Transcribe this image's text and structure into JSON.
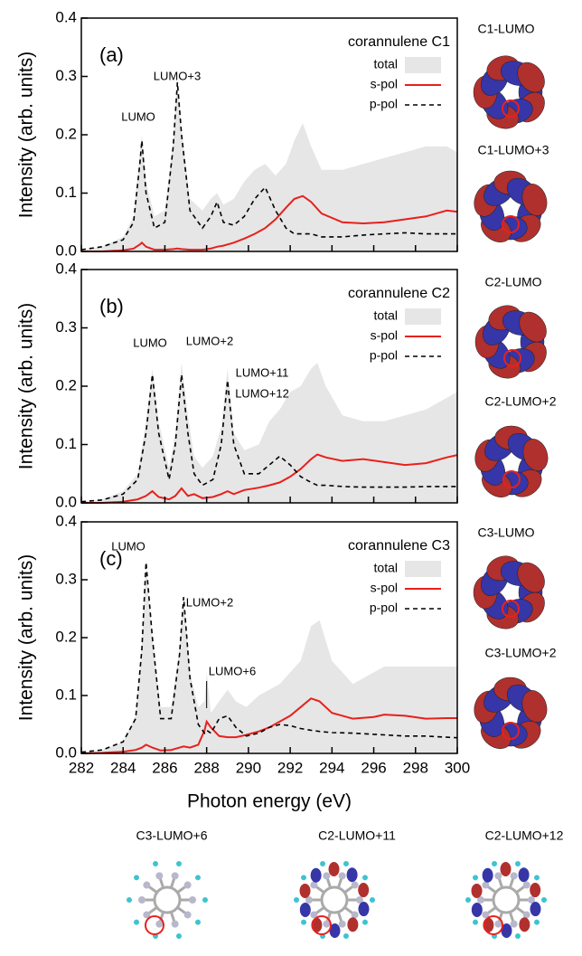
{
  "chart_data": [
    {
      "type": "line",
      "panel_label": "(a)",
      "title": "corannulene C1",
      "ylabel": "Intensity (arb. units)",
      "annotations": [
        "LUMO",
        "LUMO+3"
      ],
      "xlim": [
        282,
        300
      ],
      "xticks": [
        282,
        284,
        286,
        288,
        290,
        292,
        294,
        296,
        298,
        300
      ],
      "ylim": [
        0,
        0.4
      ],
      "yticks": [
        {
          "value": 0,
          "label": "0.0"
        },
        0.1,
        0.2,
        0.3,
        0.4
      ],
      "x": [
        282,
        283,
        284,
        284.5,
        284.8,
        284.9,
        285.1,
        285.5,
        286,
        286.4,
        286.6,
        286.8,
        287.2,
        287.8,
        288.2,
        288.5,
        288.8,
        289.3,
        289.8,
        290.3,
        290.8,
        291.3,
        291.8,
        292.2,
        292.6,
        293,
        293.5,
        294.5,
        295.5,
        296.5,
        297.5,
        298.5,
        299.5,
        300
      ],
      "series": [
        {
          "name": "total",
          "color": "#e6e6e6",
          "style": "area",
          "values": [
            0.003,
            0.008,
            0.025,
            0.06,
            0.17,
            0.2,
            0.12,
            0.06,
            0.07,
            0.19,
            0.29,
            0.21,
            0.09,
            0.07,
            0.09,
            0.1,
            0.08,
            0.09,
            0.12,
            0.14,
            0.15,
            0.13,
            0.15,
            0.19,
            0.22,
            0.18,
            0.14,
            0.14,
            0.15,
            0.16,
            0.17,
            0.18,
            0.18,
            0.17
          ]
        },
        {
          "name": "s-pol",
          "color": "#e8201c",
          "style": "solid",
          "values": [
            0,
            0,
            0.002,
            0.005,
            0.012,
            0.015,
            0.008,
            0.003,
            0.003,
            0.004,
            0.005,
            0.004,
            0.003,
            0.003,
            0.005,
            0.008,
            0.01,
            0.015,
            0.022,
            0.03,
            0.04,
            0.055,
            0.075,
            0.09,
            0.095,
            0.085,
            0.065,
            0.05,
            0.048,
            0.05,
            0.055,
            0.06,
            0.07,
            0.068
          ]
        },
        {
          "name": "p-pol",
          "color": "#000000",
          "style": "dashed",
          "values": [
            0.003,
            0.008,
            0.02,
            0.05,
            0.15,
            0.19,
            0.1,
            0.04,
            0.05,
            0.18,
            0.29,
            0.2,
            0.07,
            0.04,
            0.06,
            0.085,
            0.05,
            0.045,
            0.06,
            0.09,
            0.11,
            0.07,
            0.04,
            0.03,
            0.03,
            0.03,
            0.025,
            0.025,
            0.028,
            0.03,
            0.032,
            0.03,
            0.03,
            0.03
          ]
        }
      ]
    },
    {
      "type": "line",
      "panel_label": "(b)",
      "title": "corannulene C2",
      "ylabel": "Intensity (arb. units)",
      "annotations": [
        "LUMO",
        "LUMO+2",
        "LUMO+11",
        "LUMO+12"
      ],
      "xlim": [
        282,
        300
      ],
      "xticks": [
        282,
        284,
        286,
        288,
        290,
        292,
        294,
        296,
        298,
        300
      ],
      "ylim": [
        0,
        0.4
      ],
      "yticks": [
        {
          "value": 0,
          "label": "0.0"
        },
        0.1,
        0.2,
        0.3,
        0.4
      ],
      "x": [
        282,
        283,
        284,
        284.7,
        285.1,
        285.4,
        285.7,
        286.2,
        286.5,
        286.8,
        287.1,
        287.4,
        287.8,
        288.3,
        288.7,
        289,
        289.3,
        289.8,
        290.5,
        291,
        291.5,
        292,
        292.5,
        293,
        293.3,
        293.7,
        294.5,
        295.5,
        296.5,
        297.5,
        298.5,
        299.5,
        300
      ],
      "series": [
        {
          "name": "total",
          "color": "#e6e6e6",
          "style": "area",
          "values": [
            0.002,
            0.006,
            0.02,
            0.05,
            0.14,
            0.23,
            0.14,
            0.06,
            0.12,
            0.24,
            0.15,
            0.08,
            0.06,
            0.08,
            0.13,
            0.23,
            0.12,
            0.09,
            0.1,
            0.14,
            0.16,
            0.19,
            0.2,
            0.23,
            0.24,
            0.2,
            0.15,
            0.14,
            0.14,
            0.15,
            0.16,
            0.18,
            0.19
          ]
        },
        {
          "name": "s-pol",
          "color": "#e8201c",
          "style": "solid",
          "values": [
            0,
            0,
            0.002,
            0.006,
            0.012,
            0.02,
            0.01,
            0.006,
            0.012,
            0.025,
            0.012,
            0.015,
            0.008,
            0.01,
            0.015,
            0.02,
            0.015,
            0.022,
            0.026,
            0.03,
            0.035,
            0.045,
            0.058,
            0.075,
            0.083,
            0.078,
            0.072,
            0.075,
            0.07,
            0.065,
            0.068,
            0.078,
            0.082
          ]
        },
        {
          "name": "p-pol",
          "color": "#000000",
          "style": "dashed",
          "values": [
            0.002,
            0.005,
            0.015,
            0.04,
            0.12,
            0.22,
            0.12,
            0.04,
            0.1,
            0.22,
            0.12,
            0.05,
            0.03,
            0.04,
            0.1,
            0.21,
            0.1,
            0.05,
            0.05,
            0.065,
            0.08,
            0.065,
            0.045,
            0.035,
            0.03,
            0.03,
            0.028,
            0.027,
            0.027,
            0.027,
            0.028,
            0.028,
            0.028
          ]
        }
      ]
    },
    {
      "type": "line",
      "panel_label": "(c)",
      "title": "corannulene C3",
      "ylabel": "Intensity (arb. units)",
      "xlabel": "Photon energy (eV)",
      "annotations": [
        "LUMO",
        "LUMO+2",
        "LUMO+6"
      ],
      "xlim": [
        282,
        300
      ],
      "xticks": [
        282,
        284,
        286,
        288,
        290,
        292,
        294,
        296,
        298,
        300
      ],
      "ylim": [
        0,
        0.4
      ],
      "yticks": [
        {
          "value": 0,
          "label": "0.0"
        },
        0.1,
        0.2,
        0.3,
        0.4
      ],
      "x": [
        282,
        283,
        284,
        284.6,
        284.9,
        285.1,
        285.4,
        285.8,
        286.3,
        286.7,
        286.9,
        287.2,
        287.6,
        287.9,
        288,
        288.2,
        288.6,
        289,
        289.4,
        289.9,
        290.5,
        291,
        291.5,
        292,
        292.5,
        293,
        293.4,
        294,
        295,
        296,
        296.5,
        297.5,
        298.5,
        299.5,
        300
      ],
      "series": [
        {
          "name": "total",
          "color": "#e6e6e6",
          "style": "area",
          "values": [
            0.002,
            0.006,
            0.02,
            0.065,
            0.19,
            0.32,
            0.2,
            0.08,
            0.08,
            0.18,
            0.27,
            0.14,
            0.08,
            0.09,
            0.14,
            0.07,
            0.09,
            0.11,
            0.09,
            0.08,
            0.1,
            0.11,
            0.12,
            0.14,
            0.16,
            0.22,
            0.23,
            0.16,
            0.12,
            0.14,
            0.15,
            0.15,
            0.15,
            0.15,
            0.15
          ]
        },
        {
          "name": "s-pol",
          "color": "#e8201c",
          "style": "solid",
          "values": [
            0,
            0.001,
            0.003,
            0.006,
            0.01,
            0.015,
            0.01,
            0.005,
            0.006,
            0.01,
            0.012,
            0.01,
            0.015,
            0.04,
            0.055,
            0.045,
            0.03,
            0.028,
            0.028,
            0.032,
            0.038,
            0.045,
            0.055,
            0.065,
            0.08,
            0.095,
            0.09,
            0.07,
            0.06,
            0.063,
            0.067,
            0.065,
            0.06,
            0.061,
            0.061
          ]
        },
        {
          "name": "p-pol",
          "color": "#000000",
          "style": "dashed",
          "values": [
            0.002,
            0.006,
            0.02,
            0.06,
            0.18,
            0.33,
            0.2,
            0.06,
            0.06,
            0.17,
            0.27,
            0.13,
            0.05,
            0.035,
            0.04,
            0.035,
            0.06,
            0.065,
            0.045,
            0.03,
            0.035,
            0.045,
            0.05,
            0.048,
            0.043,
            0.04,
            0.038,
            0.036,
            0.035,
            0.033,
            0.032,
            0.03,
            0.03,
            0.028,
            0.027
          ]
        }
      ]
    }
  ],
  "orbitals": [
    "C1-LUMO",
    "C1-LUMO+3",
    "C2-LUMO",
    "C2-LUMO+2",
    "C3-LUMO",
    "C3-LUMO+2",
    "C3-LUMO+6",
    "C2-LUMO+11",
    "C2-LUMO+12"
  ]
}
